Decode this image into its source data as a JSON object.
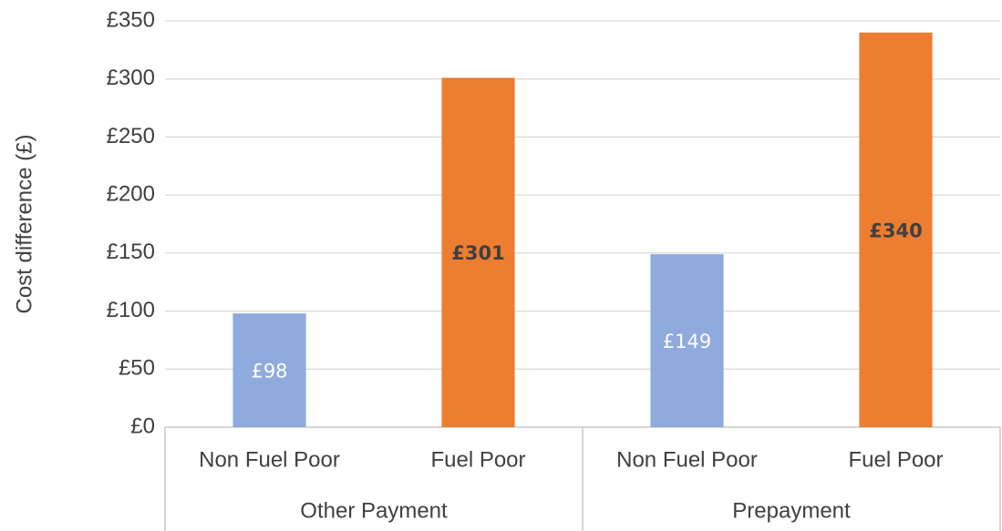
{
  "chart_data": {
    "type": "bar",
    "y_label": "Cost difference (£)",
    "groups": [
      {
        "name": "Other Payment",
        "categories": [
          "Non Fuel Poor",
          "Fuel Poor"
        ],
        "values": [
          98,
          301
        ],
        "value_labels": [
          "£98",
          "£301"
        ]
      },
      {
        "name": "Prepayment",
        "categories": [
          "Non Fuel Poor",
          "Fuel Poor"
        ],
        "values": [
          149,
          340
        ],
        "value_labels": [
          "£149",
          "£340"
        ]
      }
    ],
    "colors": [
      "#8faadc",
      "#ed7d31"
    ],
    "ylim": [
      0,
      350
    ],
    "yticks": [
      {
        "value": 0,
        "label": "£0"
      },
      {
        "value": 50,
        "label": "£50"
      },
      {
        "value": 100,
        "label": "£100"
      },
      {
        "value": 150,
        "label": "£150"
      },
      {
        "value": 200,
        "label": "£200"
      },
      {
        "value": 250,
        "label": "£250"
      },
      {
        "value": 300,
        "label": "£300"
      },
      {
        "value": 350,
        "label": "£350"
      }
    ],
    "grid": true
  }
}
